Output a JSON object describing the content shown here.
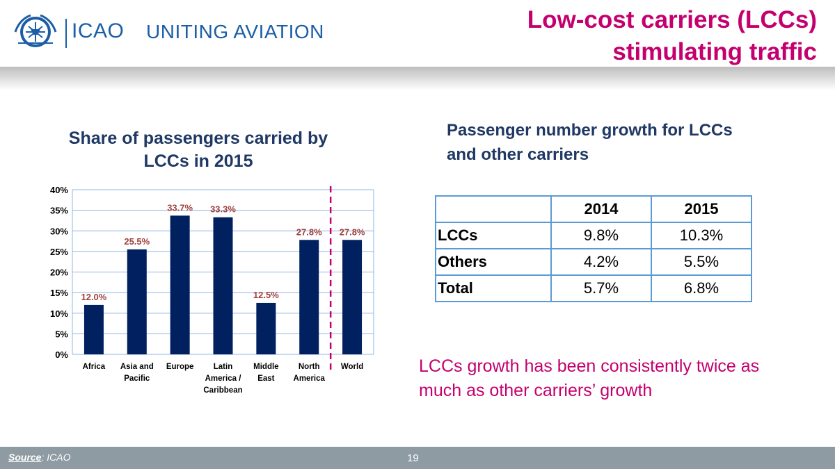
{
  "header": {
    "brand": "ICAO",
    "tagline": "UNITING AVIATION",
    "title_line1": "Low-cost carriers (LCCs)",
    "title_line2": "stimulating traffic",
    "title_color": "#c4006e",
    "brand_color": "#1b5ea6"
  },
  "chart_data": {
    "type": "bar",
    "title_line1": "Share of passengers carried by",
    "title_line2": "LCCs in 2015",
    "categories": [
      [
        "Africa"
      ],
      [
        "Asia and",
        "Pacific"
      ],
      [
        "Europe"
      ],
      [
        "Latin",
        "America /",
        "Caribbean"
      ],
      [
        "Middle",
        "East"
      ],
      [
        "North",
        "America"
      ],
      [
        "World"
      ]
    ],
    "values": [
      12.0,
      25.5,
      33.7,
      33.3,
      12.5,
      27.8,
      27.8
    ],
    "data_labels": [
      "12.0%",
      "25.5%",
      "33.7%",
      "33.3%",
      "12.5%",
      "27.8%",
      "27.8%"
    ],
    "yticks": [
      "0%",
      "5%",
      "10%",
      "15%",
      "20%",
      "25%",
      "30%",
      "35%",
      "40%"
    ],
    "ylim": [
      0,
      40
    ],
    "grid": true,
    "separator_before": "World",
    "bar_color": "#002060",
    "label_color": "#a0413d",
    "separator_color": "#c4006e"
  },
  "table": {
    "title_line1": "Passenger number growth for LCCs",
    "title_line2": "and other carriers",
    "header": [
      "",
      "2014",
      "2015"
    ],
    "rows": [
      [
        "LCCs",
        "9.8%",
        "10.3%"
      ],
      [
        "Others",
        "4.2%",
        "5.5%"
      ],
      [
        "Total",
        "5.7%",
        "6.8%"
      ]
    ]
  },
  "note": {
    "line1": "LCCs growth has been consistently twice as",
    "line2": "much as other carriers’ growth"
  },
  "footer": {
    "source_label": "Source",
    "source_value": ": ICAO",
    "page_number": "19"
  }
}
